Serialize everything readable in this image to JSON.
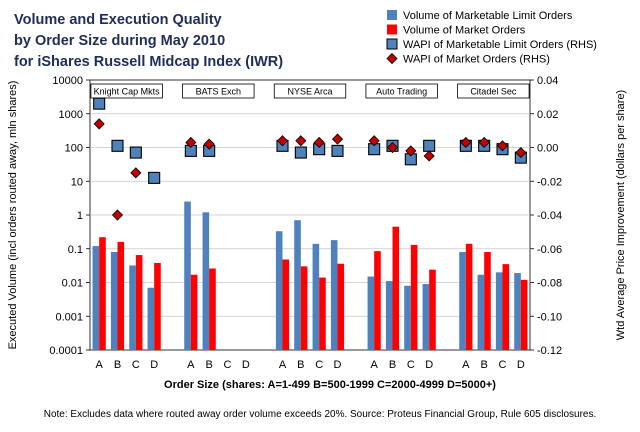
{
  "chart_data": {
    "type": "bar",
    "title_lines": [
      "Volume and Execution Quality",
      "by Order Size during May 2010",
      "for iShares Russell Midcap Index (IWR)"
    ],
    "ylabel": "Executed Volume (incl orders routed away, mln shares)",
    "y2label": "Wtd Average Price Improvement (dollars per share)",
    "xlabel": "Order Size (shares:   A=1-499    B=500-1999    C=2000-4999    D=5000+)",
    "note": "Note: Excludes data where routed away order volume exceeds 20%. Source: Proteus Financial Group, Rule 605 disclosures.",
    "y_scale": "log",
    "ylim": [
      0.0001,
      10000
    ],
    "y_ticks": [
      "0.0001",
      "0.001",
      "0.01",
      "0.1",
      "1",
      "10",
      "100",
      "1000",
      "10000"
    ],
    "y2lim": [
      -0.12,
      0.04
    ],
    "y2_ticks": [
      "-0.12",
      "-0.10",
      "-0.08",
      "-0.06",
      "-0.04",
      "-0.02",
      "0.00",
      "0.02",
      "0.04"
    ],
    "order_sizes": [
      "A",
      "B",
      "C",
      "D"
    ],
    "venues": [
      "Knight Cap Mkts",
      "BATS Exch",
      "NYSE Arca",
      "Auto Trading",
      "Citadel Sec"
    ],
    "series": [
      {
        "name": "Volume of Marketable Limit Orders",
        "kind": "bar",
        "axis": "left",
        "color": "#4f81bd",
        "values": [
          [
            0.12,
            0.08,
            0.032,
            0.007
          ],
          [
            2.5,
            1.2,
            null,
            null
          ],
          [
            0.33,
            0.7,
            0.14,
            0.18
          ],
          [
            0.015,
            0.011,
            0.008,
            0.009
          ],
          [
            0.08,
            0.017,
            0.02,
            0.019
          ]
        ]
      },
      {
        "name": "Volume of Market Orders",
        "kind": "bar",
        "axis": "left",
        "color": "#ff0000",
        "values": [
          [
            0.22,
            0.16,
            0.065,
            0.038
          ],
          [
            0.017,
            0.026,
            null,
            null
          ],
          [
            0.048,
            0.03,
            0.014,
            0.036
          ],
          [
            0.085,
            0.45,
            0.13,
            0.024
          ],
          [
            0.14,
            0.08,
            0.035,
            0.012
          ]
        ]
      },
      {
        "name": "WAPI of Marketable Limit Orders (RHS)",
        "kind": "square",
        "axis": "right",
        "color": "#4f81bd",
        "values": [
          [
            0.026,
            0.001,
            -0.003,
            -0.018
          ],
          [
            -0.002,
            -0.002,
            null,
            null
          ],
          [
            0.001,
            -0.003,
            -0.001,
            -0.002
          ],
          [
            -0.001,
            0.001,
            -0.007,
            0.001
          ],
          [
            0.001,
            0.001,
            -0.001,
            -0.006
          ]
        ]
      },
      {
        "name": "WAPI of Market Orders (RHS)",
        "kind": "diamond",
        "axis": "right",
        "color": "#c00000",
        "values": [
          [
            0.014,
            null,
            -0.015,
            null
          ],
          [
            0.003,
            0.002,
            null,
            null
          ],
          [
            0.004,
            0.004,
            0.003,
            0.005
          ],
          [
            0.004,
            0.0,
            -0.002,
            -0.005
          ],
          [
            0.003,
            0.003,
            0.001,
            -0.003
          ]
        ],
        "values_b_note": "Knight B diamond at -0.04"
      }
    ],
    "extra_points": [
      {
        "series": "WAPI of Market Orders (RHS)",
        "venue": "Knight Cap Mkts",
        "size": "B",
        "value": -0.04
      }
    ]
  }
}
